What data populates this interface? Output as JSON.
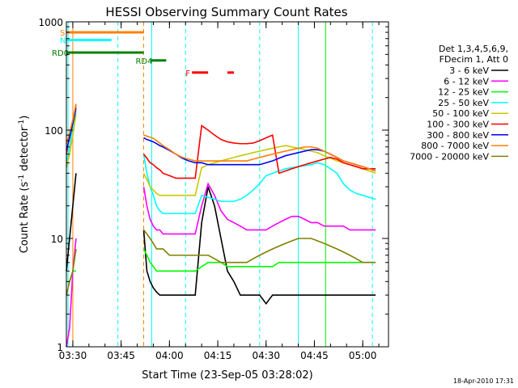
{
  "chart_data": {
    "type": "line",
    "title": "HESSI Observing Summary Count Rates",
    "xlabel": "Start Time (23-Sep-05 03:28:02)",
    "ylabel_main": "Count Rate (s",
    "ylabel_sup1": "-1",
    "ylabel_mid": " detector",
    "ylabel_sup2": "-1",
    "ylabel_end": ")",
    "yscale": "log",
    "ylim": [
      1,
      1000
    ],
    "xlim_min": [
      0,
      100
    ],
    "ytick_labels": [
      "1",
      "10",
      "100",
      "1000"
    ],
    "xtick_labels": [
      "03:30",
      "03:45",
      "04:00",
      "04:15",
      "04:30",
      "04:45",
      "05:00"
    ],
    "xtick_values": [
      2,
      17,
      32,
      47,
      62,
      77,
      92
    ],
    "legend_header": [
      "Det 1,3,4,5,6,9,",
      "FDecim 1, Att 0"
    ],
    "legend_placement": "right",
    "timestamp": "18-Apr-2010 17:31",
    "flags": [
      {
        "label": "S",
        "color": "#ff8000",
        "from": 0,
        "to": 24,
        "y": 800
      },
      {
        "label": "N",
        "color": "#00ffff",
        "from": 0,
        "to": 14,
        "y": 680
      },
      {
        "label": "F",
        "color": "#ff0000",
        "from": 39,
        "to": 44,
        "y": 340
      },
      {
        "label": "",
        "color": "#ff0000",
        "from": 50,
        "to": 52,
        "y": 340
      },
      {
        "label": "RD0",
        "color": "#008000",
        "from": 0,
        "to": 24,
        "y": 520
      },
      {
        "label": "RD4",
        "color": "#008000",
        "from": 26,
        "to": 31,
        "y": 440
      }
    ],
    "series": [
      {
        "name": "3 - 6 keV",
        "color": "#000000",
        "x": [
          24,
          25,
          26,
          27,
          28,
          29,
          30,
          32,
          34,
          36,
          38,
          40,
          42,
          44,
          46,
          48,
          50,
          52,
          54,
          56,
          58,
          60,
          62,
          64,
          66,
          68,
          70,
          72,
          74,
          76,
          78,
          80,
          82,
          84,
          86,
          88,
          90,
          92,
          94,
          96
        ],
        "y": [
          12,
          5,
          4,
          3.5,
          3.2,
          3,
          3,
          3,
          3,
          3,
          3,
          3,
          14,
          30,
          20,
          10,
          5,
          4,
          3,
          3,
          3,
          3,
          2.5,
          3,
          3,
          3,
          3,
          3,
          3,
          3,
          3,
          3,
          3,
          3,
          3,
          3,
          3,
          3,
          3,
          3
        ]
      },
      {
        "name": "6 - 12 keV",
        "color": "#ff00ff",
        "x": [
          24,
          25,
          26,
          27,
          28,
          29,
          30,
          32,
          34,
          36,
          38,
          40,
          42,
          44,
          46,
          48,
          50,
          52,
          54,
          56,
          58,
          60,
          62,
          64,
          66,
          68,
          70,
          72,
          74,
          76,
          78,
          80,
          82,
          84,
          86,
          88,
          90,
          92,
          94,
          96
        ],
        "y": [
          30,
          20,
          15,
          13,
          12,
          12,
          11,
          11,
          11,
          11,
          11,
          11,
          20,
          32,
          25,
          18,
          15,
          14,
          13,
          12,
          12,
          12,
          12,
          13,
          14,
          15,
          16,
          16,
          15,
          14,
          14,
          13,
          13,
          13,
          13,
          12,
          12,
          12,
          12,
          12
        ]
      },
      {
        "name": "12 - 25 keV",
        "color": "#00ff00",
        "x": [
          24,
          25,
          26,
          27,
          28,
          29,
          30,
          32,
          34,
          36,
          38,
          40,
          42,
          44,
          46,
          48,
          50,
          52,
          54,
          56,
          58,
          60,
          62,
          64,
          66,
          68,
          70,
          72,
          74,
          76,
          78,
          80,
          82,
          84,
          86,
          88,
          90,
          92,
          94,
          96
        ],
        "y": [
          8,
          7,
          6,
          5.5,
          5,
          5,
          5,
          5,
          5,
          5,
          5,
          5,
          5.5,
          6,
          6,
          6,
          5.5,
          5.5,
          5.5,
          5.5,
          5.5,
          5.5,
          5.5,
          5.5,
          6,
          6,
          6,
          6,
          6,
          6,
          6,
          6,
          6,
          6,
          6,
          6,
          6,
          6,
          6,
          6
        ]
      },
      {
        "name": "25 - 50 keV",
        "color": "#00ffff",
        "x": [
          24,
          25,
          26,
          27,
          28,
          29,
          30,
          32,
          34,
          36,
          38,
          40,
          42,
          44,
          46,
          48,
          50,
          52,
          54,
          56,
          58,
          60,
          62,
          64,
          66,
          68,
          70,
          72,
          74,
          76,
          78,
          80,
          82,
          84,
          86,
          88,
          90,
          92,
          94,
          96
        ],
        "y": [
          60,
          40,
          30,
          25,
          20,
          18,
          17,
          17,
          17,
          17,
          17,
          17,
          25,
          24,
          23,
          22,
          22,
          22,
          23,
          25,
          28,
          32,
          38,
          40,
          42,
          44,
          45,
          46,
          47,
          48,
          50,
          48,
          44,
          40,
          32,
          28,
          26,
          25,
          24,
          23
        ]
      },
      {
        "name": "50 - 100 keV",
        "color": "#c8c800",
        "x": [
          24,
          25,
          26,
          27,
          28,
          29,
          30,
          32,
          34,
          36,
          38,
          40,
          42,
          44,
          46,
          48,
          50,
          52,
          54,
          56,
          58,
          60,
          62,
          64,
          66,
          68,
          70,
          72,
          74,
          76,
          78,
          80,
          82,
          84,
          86,
          88,
          90,
          92,
          94,
          96
        ],
        "y": [
          40,
          35,
          30,
          28,
          26,
          25,
          25,
          25,
          25,
          25,
          25,
          25,
          45,
          48,
          50,
          52,
          54,
          56,
          58,
          60,
          62,
          64,
          66,
          68,
          70,
          72,
          70,
          68,
          66,
          64,
          62,
          58,
          55,
          52,
          50,
          48,
          46,
          44,
          42,
          40
        ]
      },
      {
        "name": "100 - 300 keV",
        "color": "#ff0000",
        "x": [
          24,
          25,
          26,
          27,
          28,
          29,
          30,
          32,
          34,
          36,
          38,
          40,
          42,
          44,
          46,
          48,
          50,
          52,
          54,
          56,
          58,
          60,
          62,
          64,
          66,
          68,
          70,
          72,
          74,
          76,
          78,
          80,
          82,
          84,
          86,
          88,
          90,
          92,
          94,
          96
        ],
        "y": [
          60,
          55,
          50,
          48,
          45,
          43,
          40,
          38,
          36,
          36,
          36,
          36,
          110,
          100,
          90,
          82,
          78,
          76,
          75,
          75,
          76,
          80,
          85,
          90,
          40,
          42,
          44,
          46,
          48,
          50,
          52,
          54,
          56,
          54,
          50,
          48,
          46,
          44,
          44,
          44
        ]
      },
      {
        "name": "300 - 800 keV",
        "color": "#0000ff",
        "x": [
          24,
          25,
          26,
          27,
          28,
          29,
          30,
          32,
          34,
          36,
          38,
          40,
          42,
          44,
          46,
          48,
          50,
          52,
          54,
          56,
          58,
          60,
          62,
          64,
          66,
          68,
          70,
          72,
          74,
          76,
          78,
          80,
          82,
          84,
          86,
          88,
          90,
          92,
          94,
          96
        ],
        "y": [
          85,
          82,
          80,
          78,
          75,
          72,
          70,
          65,
          60,
          55,
          52,
          50,
          50,
          48,
          48,
          48,
          48,
          48,
          48,
          48,
          48,
          48,
          50,
          52,
          55,
          58,
          60,
          62,
          64,
          66,
          66,
          64,
          60,
          56,
          52,
          50,
          48,
          46,
          44,
          42
        ]
      },
      {
        "name": "800 - 7000 keV",
        "color": "#ff8000",
        "x": [
          24,
          25,
          26,
          27,
          28,
          29,
          30,
          32,
          34,
          36,
          38,
          40,
          42,
          44,
          46,
          48,
          50,
          52,
          54,
          56,
          58,
          60,
          62,
          64,
          66,
          68,
          70,
          72,
          74,
          76,
          78,
          80,
          82,
          84,
          86,
          88,
          90,
          92,
          94,
          96
        ],
        "y": [
          90,
          88,
          86,
          84,
          80,
          76,
          72,
          66,
          60,
          56,
          54,
          52,
          52,
          52,
          52,
          52,
          52,
          52,
          52,
          52,
          54,
          56,
          58,
          60,
          62,
          64,
          66,
          68,
          70,
          70,
          68,
          64,
          60,
          56,
          52,
          50,
          48,
          46,
          44,
          42
        ]
      },
      {
        "name": "7000 - 20000 keV",
        "color": "#808000",
        "x": [
          24,
          25,
          26,
          27,
          28,
          29,
          30,
          32,
          34,
          36,
          38,
          40,
          42,
          44,
          46,
          48,
          50,
          52,
          54,
          56,
          58,
          60,
          62,
          64,
          66,
          68,
          70,
          72,
          74,
          76,
          78,
          80,
          82,
          84,
          86,
          88,
          90,
          92,
          94,
          96
        ],
        "y": [
          12,
          11,
          10,
          9,
          8,
          8,
          8,
          7,
          7,
          7,
          7,
          7,
          7,
          7,
          6.5,
          6,
          6,
          6,
          6,
          6,
          6.5,
          7,
          7.5,
          8,
          8.5,
          9,
          9.5,
          10,
          10,
          10,
          9.5,
          9,
          8.5,
          8,
          7.5,
          7,
          6.5,
          6,
          6,
          6
        ]
      }
    ],
    "left_segment": {
      "x": [
        0,
        1,
        2,
        3
      ],
      "y": {
        "3 - 6 keV": [
          5,
          10,
          20,
          40
        ],
        "6 - 12 keV": [
          1,
          1.5,
          5,
          10
        ],
        "12 - 25 keV": [
          4,
          4,
          5,
          5
        ],
        "25 - 50 keV": [
          50,
          70,
          110,
          150
        ],
        "50 - 100 keV": [
          45,
          60,
          90,
          140
        ],
        "100 - 300 keV": [
          60,
          90,
          120,
          170
        ],
        "300 - 800 keV": [
          65,
          85,
          115,
          160
        ],
        "800 - 7000 keV": [
          75,
          95,
          125,
          175
        ],
        "7000 - 20000 keV": [
          3,
          4,
          5,
          8
        ]
      }
    },
    "vlines": [
      {
        "x": 0.5,
        "color": "#00ffff",
        "style": "solid"
      },
      {
        "x": 2,
        "color": "#ff8000",
        "style": "solid"
      },
      {
        "x": 16,
        "color": "#00ffff",
        "style": "dashed"
      },
      {
        "x": 24,
        "color": "#ff8000",
        "style": "dashed"
      },
      {
        "x": 26.5,
        "color": "#00ffff",
        "style": "solid"
      },
      {
        "x": 37,
        "color": "#00ffff",
        "style": "dashed"
      },
      {
        "x": 60,
        "color": "#00ffff",
        "style": "dashed"
      },
      {
        "x": 72,
        "color": "#00ffff",
        "style": "solid"
      },
      {
        "x": 80.5,
        "color": "#00ff00",
        "style": "solid"
      },
      {
        "x": 95,
        "color": "#00ffff",
        "style": "dashed"
      }
    ]
  }
}
